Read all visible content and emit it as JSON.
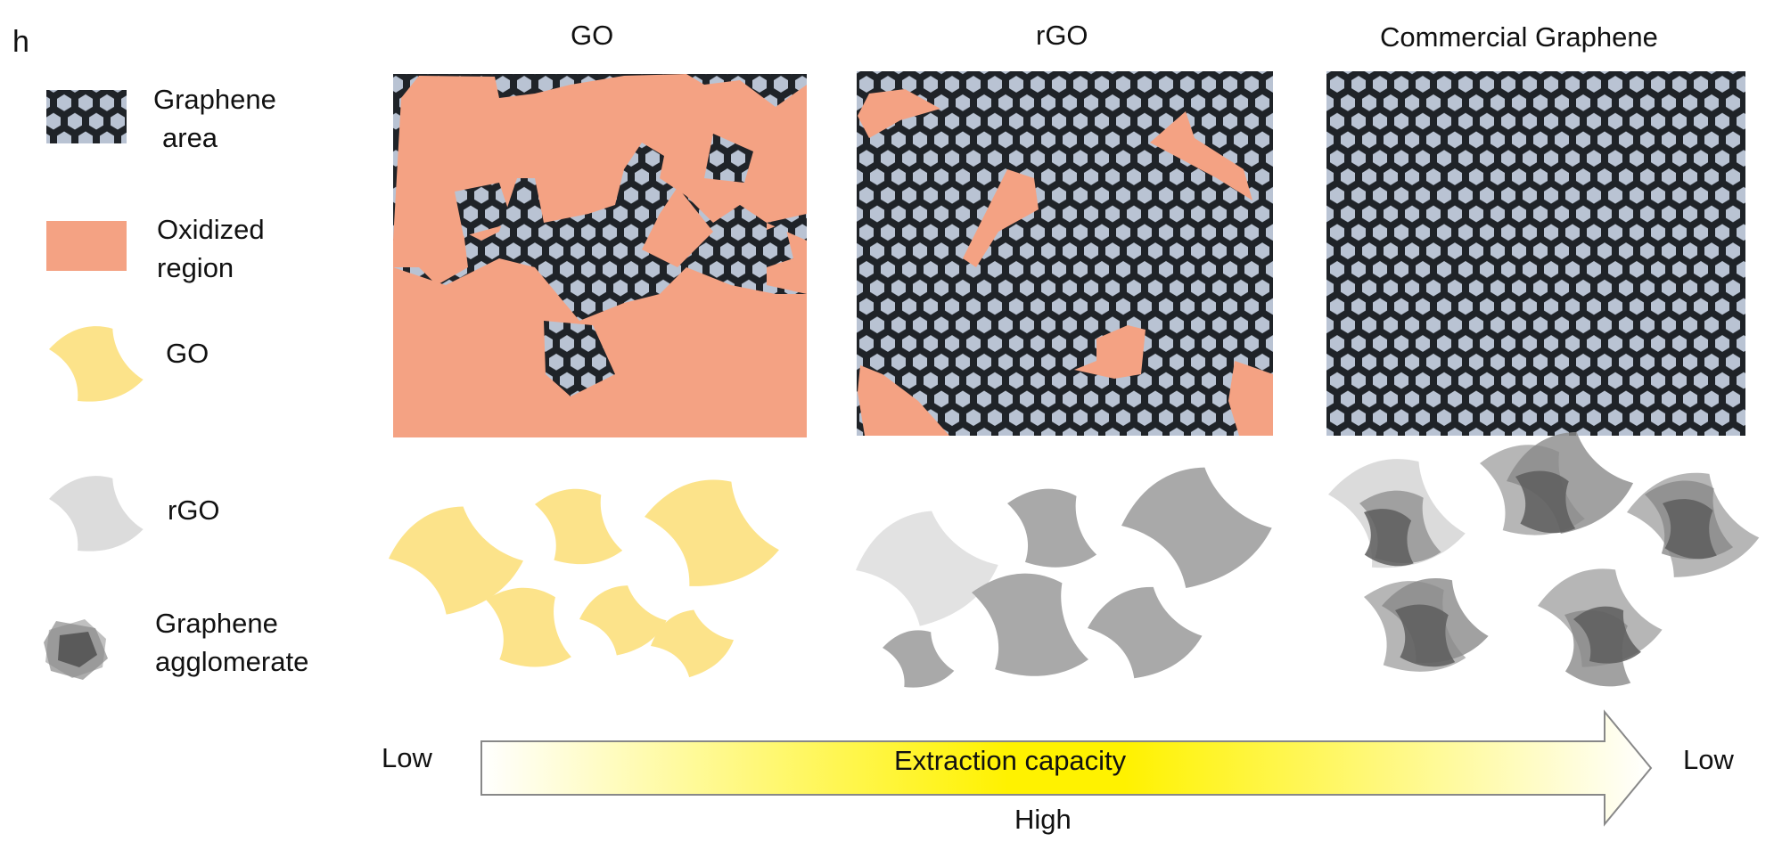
{
  "panel_label": "h",
  "legend": {
    "graphene_area_label_1": "Graphene",
    "graphene_area_label_2": "area",
    "oxidized_region_label_1": "Oxidized",
    "oxidized_region_label_2": "region",
    "go_label": "GO",
    "rgo_label": "rGO",
    "agglomerate_label_1": "Graphene",
    "agglomerate_label_2": "agglomerate"
  },
  "columns": {
    "go_title": "GO",
    "rgo_title": "rGO",
    "commercial_title": "Commercial Graphene"
  },
  "arrow": {
    "label": "Extraction capacity",
    "left_label": "Low",
    "right_label": "Low",
    "center_label": "High"
  },
  "colors": {
    "oxidized": "#f4a283",
    "go_flake": "#fce38a",
    "rgo_flake_light": "#dcdcdc",
    "rgo_flake_dark": "#a7a7a7",
    "agglomerate": "#6f6f6f",
    "lattice_bg": "#1f2328",
    "lattice_hex": "#b9c3d3",
    "arrow_peak": "#fff200"
  }
}
